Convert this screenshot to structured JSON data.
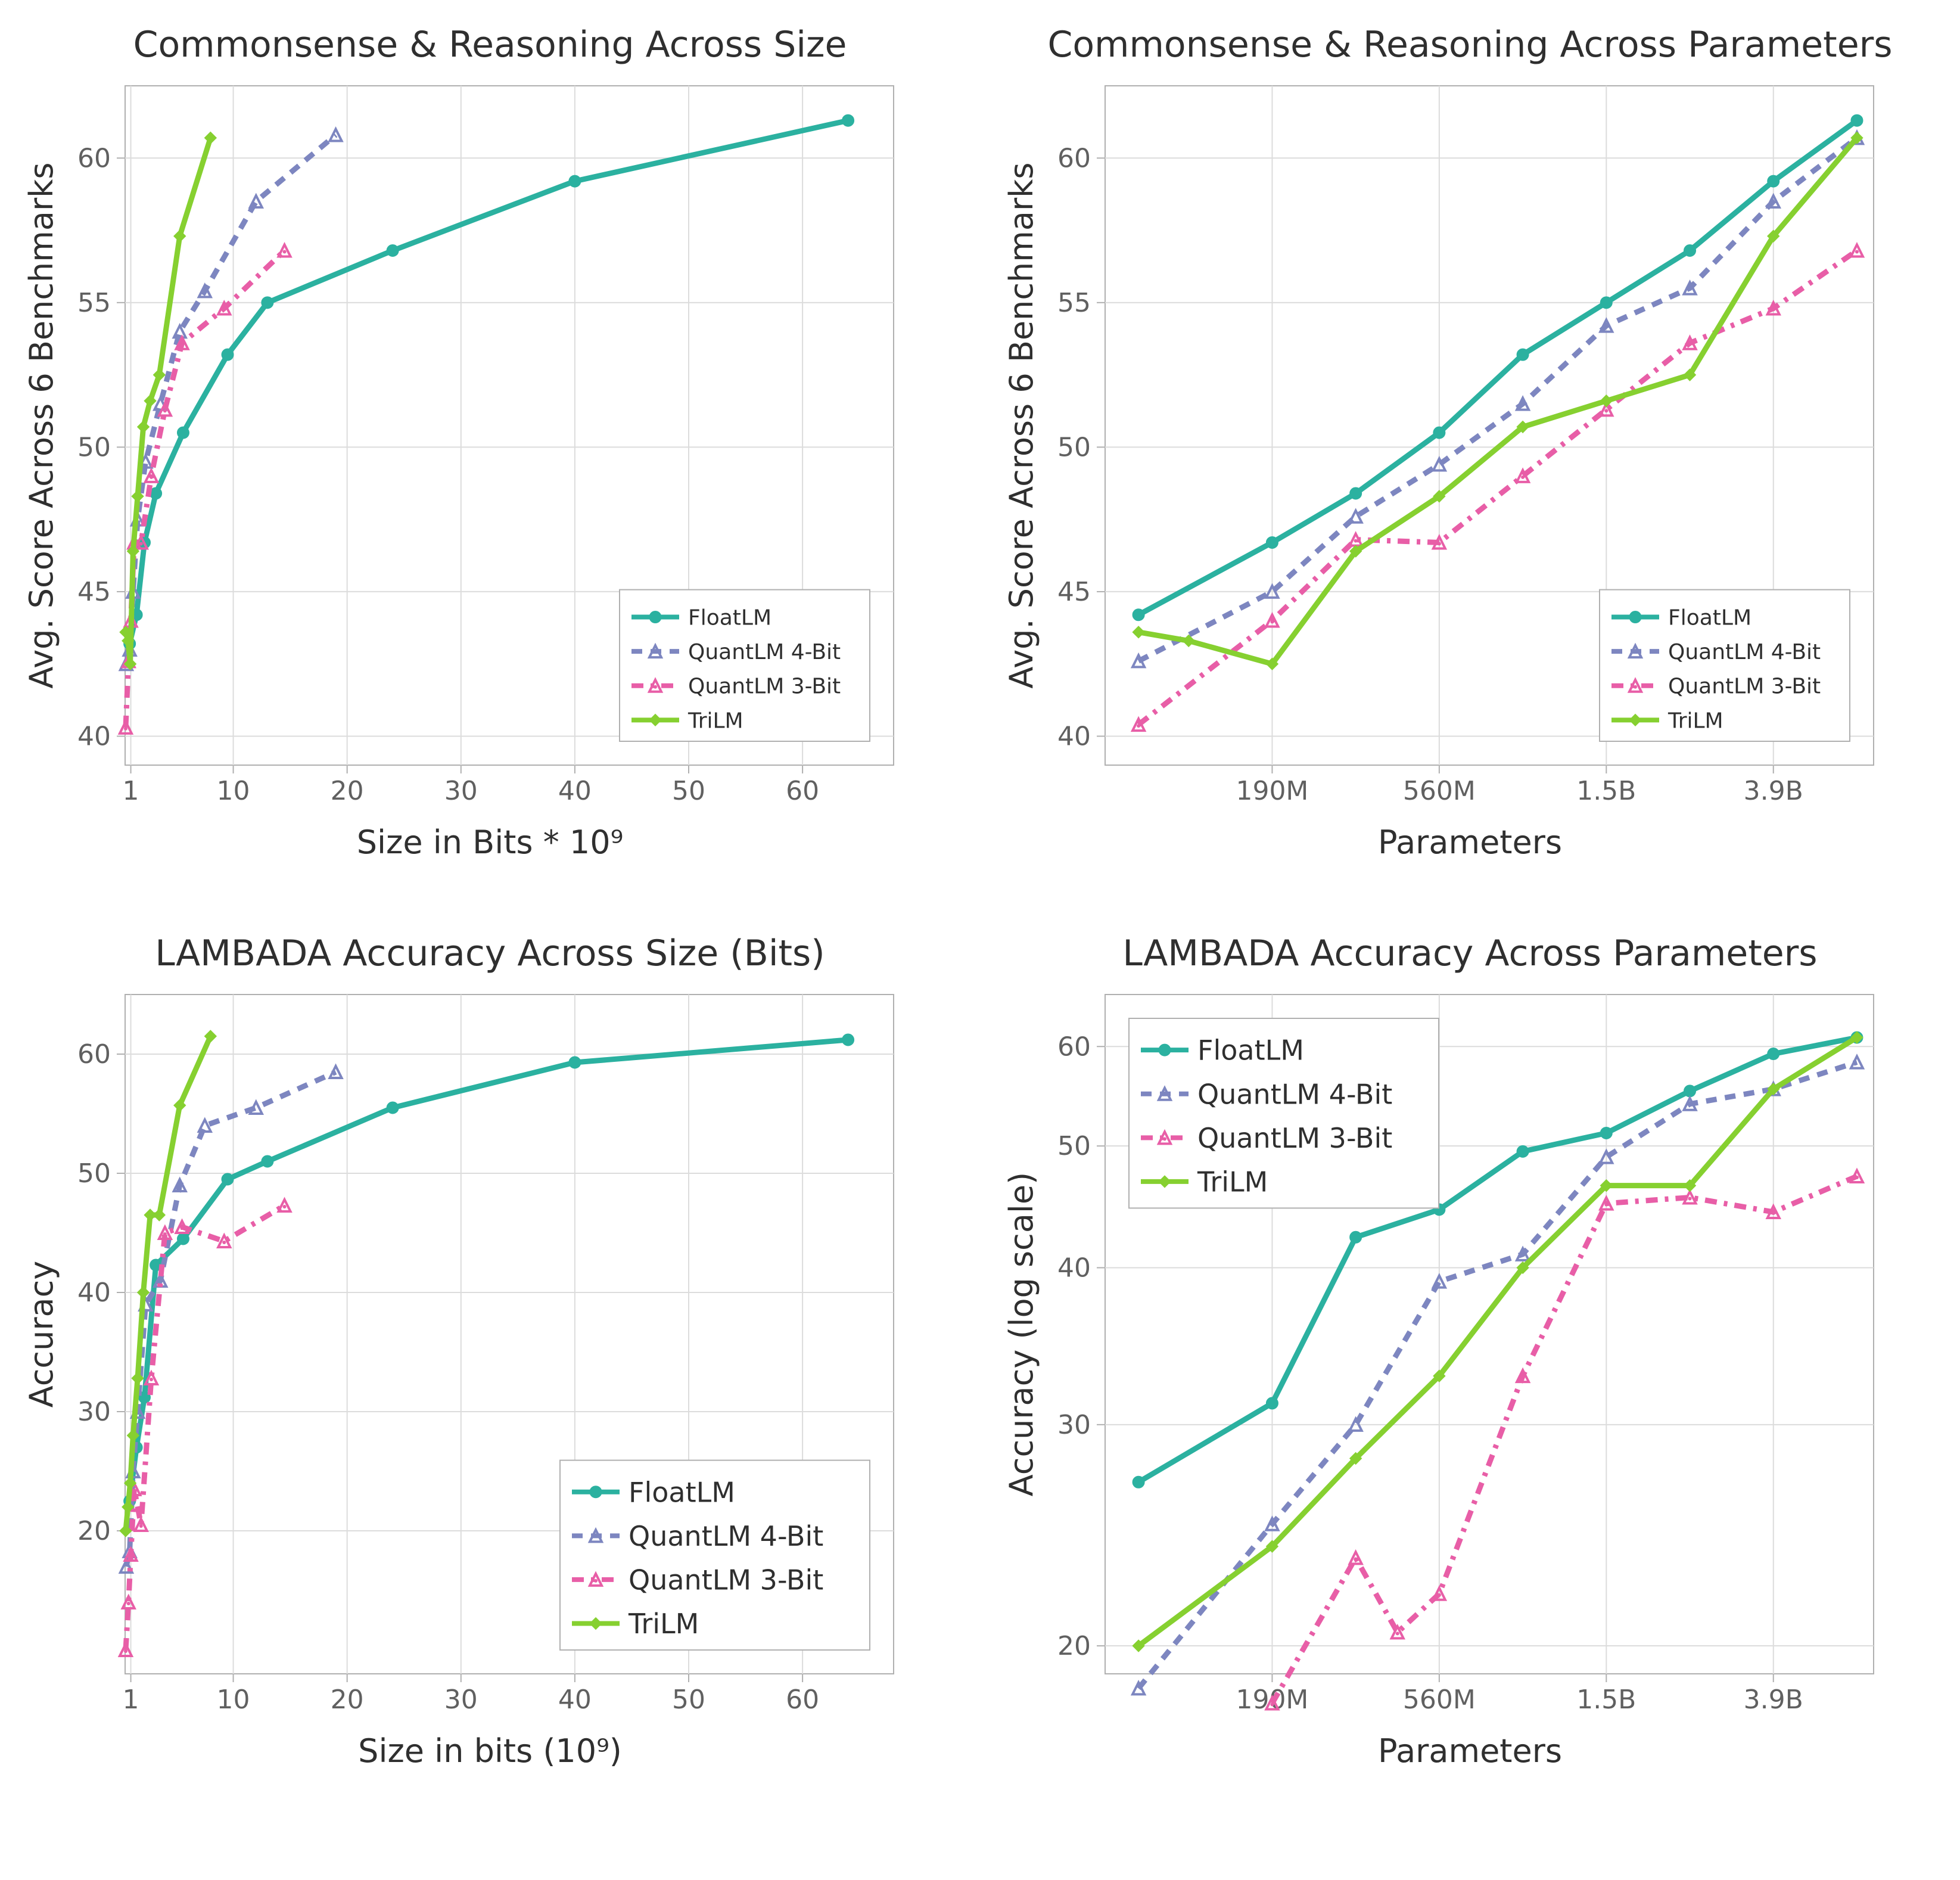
{
  "colors": {
    "floatlm": "#2bb1a0",
    "q4bit": "#7d86c0",
    "q3bit": "#e85ea7",
    "trilm": "#86d030",
    "axis": "#b0b0b0",
    "grid": "#dcdcdc",
    "text": "#2f2f2f",
    "ticktext": "#606060",
    "bg": "#ffffff"
  },
  "series_meta": [
    {
      "key": "floatlm",
      "label": "FloatLM",
      "color": "#2bb1a0",
      "dash": "",
      "marker": "circle"
    },
    {
      "key": "q4bit",
      "label": "QuantLM 4-Bit",
      "color": "#7d86c0",
      "dash": "18 14",
      "marker": "triangle"
    },
    {
      "key": "q3bit",
      "label": "QuantLM 3-Bit",
      "color": "#e85ea7",
      "dash": "20 12 6 12",
      "marker": "tri-dot"
    },
    {
      "key": "trilm",
      "label": "TriLM",
      "color": "#86d030",
      "dash": "",
      "marker": "diamond"
    }
  ],
  "panel_tl": {
    "title": "Commonsense & Reasoning Across Size",
    "xlabel": "Size in Bits * 10⁹",
    "ylabel": "Avg. Score Across 6 Benchmarks",
    "xdomain": [
      0.5,
      68
    ],
    "ydomain": [
      39,
      62.5
    ],
    "xticks": [
      1,
      10,
      20,
      30,
      40,
      50,
      60
    ],
    "yticks": [
      40,
      45,
      50,
      55,
      60
    ],
    "legend": {
      "pos": "se-inset",
      "fontsize": 36
    },
    "series": {
      "floatlm": [
        [
          0.9,
          43.2
        ],
        [
          1.5,
          44.2
        ],
        [
          2.2,
          46.7
        ],
        [
          3.2,
          48.4
        ],
        [
          5.6,
          50.5
        ],
        [
          9.5,
          53.2
        ],
        [
          13,
          55.0
        ],
        [
          24,
          56.8
        ],
        [
          40,
          59.2
        ],
        [
          64,
          61.3
        ]
      ],
      "q4bit": [
        [
          0.6,
          42.5
        ],
        [
          0.9,
          43.0
        ],
        [
          1.2,
          45.0
        ],
        [
          1.6,
          47.5
        ],
        [
          2.3,
          49.5
        ],
        [
          3.6,
          51.5
        ],
        [
          5.3,
          54.0
        ],
        [
          7.5,
          55.4
        ],
        [
          12,
          58.5
        ],
        [
          19,
          60.8
        ]
      ],
      "q3bit": [
        [
          0.55,
          40.3
        ],
        [
          0.8,
          42.6
        ],
        [
          1.0,
          44.0
        ],
        [
          1.3,
          46.7
        ],
        [
          1.9,
          46.7
        ],
        [
          2.8,
          49.0
        ],
        [
          4.0,
          51.3
        ],
        [
          5.5,
          53.6
        ],
        [
          9.2,
          54.8
        ],
        [
          14.5,
          56.8
        ]
      ],
      "trilm": [
        [
          0.55,
          43.6
        ],
        [
          0.75,
          43.3
        ],
        [
          0.95,
          42.5
        ],
        [
          1.2,
          46.4
        ],
        [
          1.6,
          48.3
        ],
        [
          2.1,
          50.7
        ],
        [
          2.7,
          51.6
        ],
        [
          3.5,
          52.5
        ],
        [
          5.3,
          57.3
        ],
        [
          8.0,
          60.7
        ]
      ]
    }
  },
  "panel_tr": {
    "title": "Commonsense & Reasoning Across Parameters",
    "xlabel": "Parameters",
    "ylabel": "Avg. Score Across 6 Benchmarks",
    "xdomain": [
      0,
      9.2
    ],
    "ydomain": [
      39,
      62.5
    ],
    "xticks": [
      {
        "v": 2,
        "l": "190M"
      },
      {
        "v": 4,
        "l": "560M"
      },
      {
        "v": 6,
        "l": "1.5B"
      },
      {
        "v": 8,
        "l": "3.9B"
      }
    ],
    "yticks": [
      40,
      45,
      50,
      55,
      60
    ],
    "legend": {
      "pos": "se",
      "fontsize": 36
    },
    "series": {
      "floatlm": [
        [
          0.4,
          44.2
        ],
        [
          2.0,
          46.7
        ],
        [
          3.0,
          48.4
        ],
        [
          4.0,
          50.5
        ],
        [
          5.0,
          53.2
        ],
        [
          6.0,
          55.0
        ],
        [
          7.0,
          56.8
        ],
        [
          8.0,
          59.2
        ],
        [
          9.0,
          61.3
        ]
      ],
      "q4bit": [
        [
          0.4,
          42.6
        ],
        [
          2.0,
          45.0
        ],
        [
          3.0,
          47.6
        ],
        [
          4.0,
          49.4
        ],
        [
          5.0,
          51.5
        ],
        [
          6.0,
          54.2
        ],
        [
          7.0,
          55.5
        ],
        [
          8.0,
          58.5
        ],
        [
          9.0,
          60.7
        ]
      ],
      "q3bit": [
        [
          0.4,
          40.4
        ],
        [
          2.0,
          44.0
        ],
        [
          3.0,
          46.8
        ],
        [
          4.0,
          46.7
        ],
        [
          5.0,
          49.0
        ],
        [
          6.0,
          51.3
        ],
        [
          7.0,
          53.6
        ],
        [
          8.0,
          54.8
        ],
        [
          9.0,
          56.8
        ]
      ],
      "trilm": [
        [
          0.4,
          43.6
        ],
        [
          1.0,
          43.3
        ],
        [
          2.0,
          42.5
        ],
        [
          3.0,
          46.4
        ],
        [
          4.0,
          48.3
        ],
        [
          5.0,
          50.7
        ],
        [
          6.0,
          51.6
        ],
        [
          7.0,
          52.5
        ],
        [
          8.0,
          57.3
        ],
        [
          9.0,
          60.7
        ]
      ]
    }
  },
  "panel_bl": {
    "title": "LAMBADA Accuracy Across Size (Bits)",
    "xlabel": "Size in bits (10⁹)",
    "ylabel": "Accuracy",
    "xdomain": [
      0.5,
      68
    ],
    "ydomain": [
      8,
      65
    ],
    "xticks": [
      1,
      10,
      20,
      30,
      40,
      50,
      60
    ],
    "yticks": [
      20,
      30,
      40,
      50,
      60
    ],
    "legend": {
      "pos": "se-large",
      "fontsize": 46
    },
    "series": {
      "floatlm": [
        [
          0.9,
          22.5
        ],
        [
          1.5,
          27.0
        ],
        [
          2.2,
          31.2
        ],
        [
          3.2,
          42.3
        ],
        [
          5.6,
          44.5
        ],
        [
          9.5,
          49.5
        ],
        [
          13,
          51.0
        ],
        [
          24,
          55.5
        ],
        [
          40,
          59.3
        ],
        [
          64,
          61.2
        ]
      ],
      "q4bit": [
        [
          0.6,
          17.0
        ],
        [
          0.9,
          18.3
        ],
        [
          1.2,
          25.0
        ],
        [
          1.6,
          30.0
        ],
        [
          2.3,
          39.0
        ],
        [
          3.6,
          41.0
        ],
        [
          5.3,
          49.0
        ],
        [
          7.5,
          54.0
        ],
        [
          12,
          55.5
        ],
        [
          19,
          58.5
        ]
      ],
      "q3bit": [
        [
          0.55,
          10.0
        ],
        [
          0.8,
          14.0
        ],
        [
          1.0,
          18.0
        ],
        [
          1.3,
          23.5
        ],
        [
          1.9,
          20.5
        ],
        [
          2.8,
          32.8
        ],
        [
          4.0,
          45.0
        ],
        [
          5.5,
          45.5
        ],
        [
          9.2,
          44.3
        ],
        [
          14.5,
          47.3
        ]
      ],
      "trilm": [
        [
          0.55,
          20.0
        ],
        [
          0.75,
          22.0
        ],
        [
          0.95,
          24.0
        ],
        [
          1.2,
          28.0
        ],
        [
          1.6,
          32.8
        ],
        [
          2.1,
          40.0
        ],
        [
          2.7,
          46.5
        ],
        [
          3.5,
          46.5
        ],
        [
          5.3,
          55.7
        ],
        [
          8.0,
          61.5
        ]
      ]
    }
  },
  "panel_br": {
    "title": "LAMBADA Accuracy Across Parameters",
    "xlabel": "Parameters",
    "ylabel": "Accuracy (log scale)",
    "xdomain": [
      0,
      9.2
    ],
    "ydomain": [
      19,
      66
    ],
    "xticks": [
      {
        "v": 2,
        "l": "190M"
      },
      {
        "v": 4,
        "l": "560M"
      },
      {
        "v": 6,
        "l": "1.5B"
      },
      {
        "v": 8,
        "l": "3.9B"
      }
    ],
    "yticks": [
      20,
      30,
      40,
      50,
      60
    ],
    "yscale": "log",
    "legend": {
      "pos": "nw",
      "fontsize": 46
    },
    "series": {
      "floatlm": [
        [
          0.4,
          27.0
        ],
        [
          2.0,
          31.2
        ],
        [
          3.0,
          42.3
        ],
        [
          4.0,
          44.5
        ],
        [
          5.0,
          49.5
        ],
        [
          6.0,
          51.2
        ],
        [
          7.0,
          55.3
        ],
        [
          8.0,
          59.2
        ],
        [
          9.0,
          61.0
        ]
      ],
      "q4bit": [
        [
          0.4,
          18.5
        ],
        [
          2.0,
          25.0
        ],
        [
          3.0,
          30.0
        ],
        [
          4.0,
          39.0
        ],
        [
          5.0,
          41.0
        ],
        [
          6.0,
          49.0
        ],
        [
          7.0,
          54.0
        ],
        [
          8.0,
          55.5
        ],
        [
          9.0,
          58.3
        ]
      ],
      "q3bit": [
        [
          2.0,
          18.0
        ],
        [
          3.0,
          23.5
        ],
        [
          3.5,
          20.5
        ],
        [
          4.0,
          22.0
        ],
        [
          5.0,
          32.8
        ],
        [
          6.0,
          45.0
        ],
        [
          7.0,
          45.5
        ],
        [
          8.0,
          44.3
        ],
        [
          9.0,
          47.3
        ]
      ],
      "trilm": [
        [
          0.4,
          20.0
        ],
        [
          2.0,
          24.0
        ],
        [
          3.0,
          28.2
        ],
        [
          4.0,
          32.8
        ],
        [
          5.0,
          40.0
        ],
        [
          6.0,
          46.5
        ],
        [
          7.0,
          46.5
        ],
        [
          8.0,
          55.5
        ],
        [
          9.0,
          61.0
        ]
      ]
    }
  }
}
